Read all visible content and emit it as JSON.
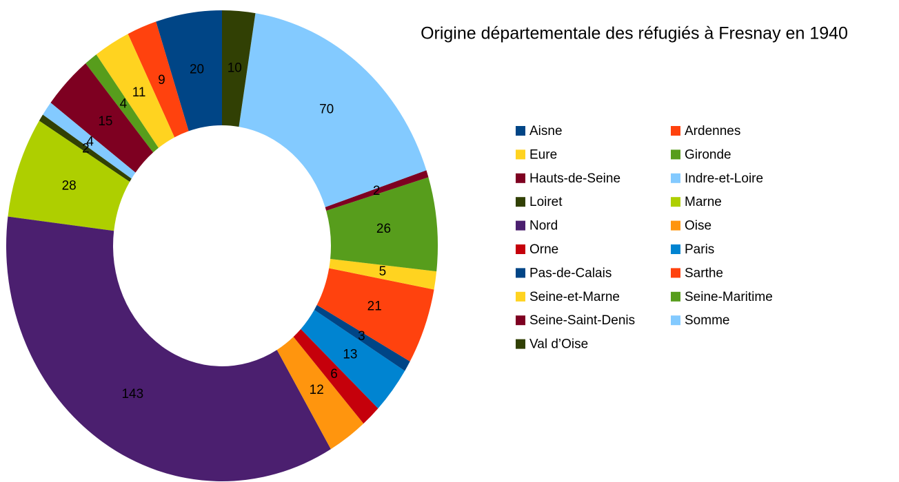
{
  "chart_data": {
    "type": "donut",
    "title": "Origine départementale des réfugiés à Fresnay en 1940",
    "categories": [
      "Aisne",
      "Ardennes",
      "Eure",
      "Gironde",
      "Hauts-de-Seine",
      "Indre-et-Loire",
      "Loiret",
      "Marne",
      "Nord",
      "Oise",
      "Orne",
      "Paris",
      "Pas-de-Calais",
      "Sarthe",
      "Seine-et-Marne",
      "Seine-Maritime",
      "Seine-Saint-Denis",
      "Somme",
      "Val d’Oise"
    ],
    "values": [
      20,
      9,
      11,
      4,
      15,
      4,
      2,
      28,
      143,
      12,
      6,
      13,
      3,
      21,
      5,
      26,
      2,
      70,
      10
    ],
    "colors": [
      "#004586",
      "#ff420e",
      "#ffd320",
      "#579d1c",
      "#7e0021",
      "#83caff",
      "#314004",
      "#aecf00",
      "#4b1f6f",
      "#ff950e",
      "#c5000b",
      "#0084d1",
      "#004586",
      "#ff420e",
      "#ffd320",
      "#579d1c",
      "#7e0021",
      "#83caff",
      "#314004"
    ],
    "legend": "right"
  }
}
